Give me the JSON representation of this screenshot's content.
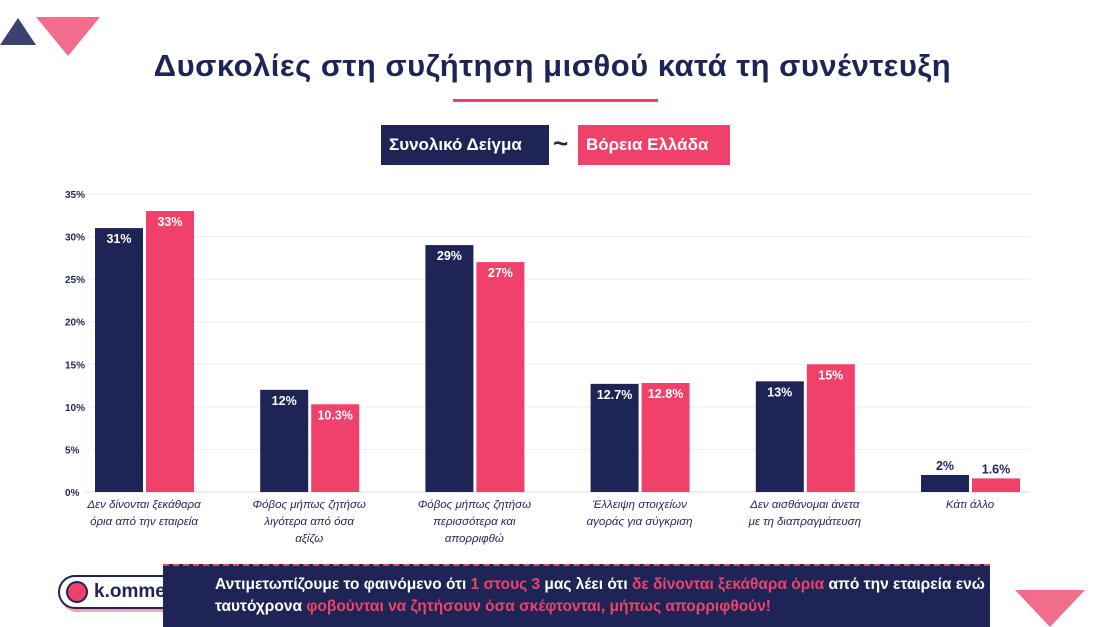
{
  "title": "Δυσκολίες στη συζήτηση μισθού κατά τη συνέντευξη",
  "colors": {
    "navy": "#1e2556",
    "pink": "#f0416b"
  },
  "chart_data": {
    "type": "bar",
    "title": "Δυσκολίες στη συζήτηση μισθού κατά τη συνέντευξη",
    "categories": [
      "Δεν δίνονται ξεκάθαρα όρια από την εταιρεία",
      "Φόβος μήπως ζητήσω λιγότερα από όσα αξίζω",
      "Φόβος μήπως ζητήσω περισσότερα και απορριφθώ",
      "Έλλειψη στοιχείων αγοράς για σύγκριση",
      "Δεν αισθάνομαι άνετα με τη διαπραγμάτευση",
      "Κάτι άλλο"
    ],
    "series": [
      {
        "name": "Συνολικό Δείγμα",
        "values": [
          31,
          12,
          29,
          12.7,
          13,
          2
        ],
        "labels": [
          "31%",
          "12%",
          "29%",
          "12.7%",
          "13%",
          "2%"
        ]
      },
      {
        "name": "Βόρεια Ελλάδα",
        "values": [
          33,
          10.3,
          27,
          12.8,
          15,
          1.6
        ],
        "labels": [
          "33%",
          "10.3%",
          "27%",
          "12.8%",
          "15%",
          "1.6%"
        ]
      }
    ],
    "yticks": [
      "0%",
      "5%",
      "10%",
      "15%",
      "20%",
      "25%",
      "30%",
      "35%"
    ],
    "ylim": [
      0,
      35
    ],
    "legend_separator": "~",
    "legend": "top-center"
  },
  "comment": {
    "brand": "k.omment",
    "parts": [
      {
        "t": "Αντιμετωπίζουμε το φαινόμενο ότι ",
        "hl": false
      },
      {
        "t": "1 στους 3",
        "hl": true
      },
      {
        "t": " μας λέει ότι ",
        "hl": false
      },
      {
        "t": "δε δίνονται ξεκάθαρα όρια",
        "hl": true
      },
      {
        "t": " από την εταιρεία ενώ ταυτόχρονα ",
        "hl": false
      },
      {
        "t": "φοβούνται να ζητήσουν όσα σκέφτονται, μήπως απορριφθούν!",
        "hl": true
      }
    ]
  }
}
